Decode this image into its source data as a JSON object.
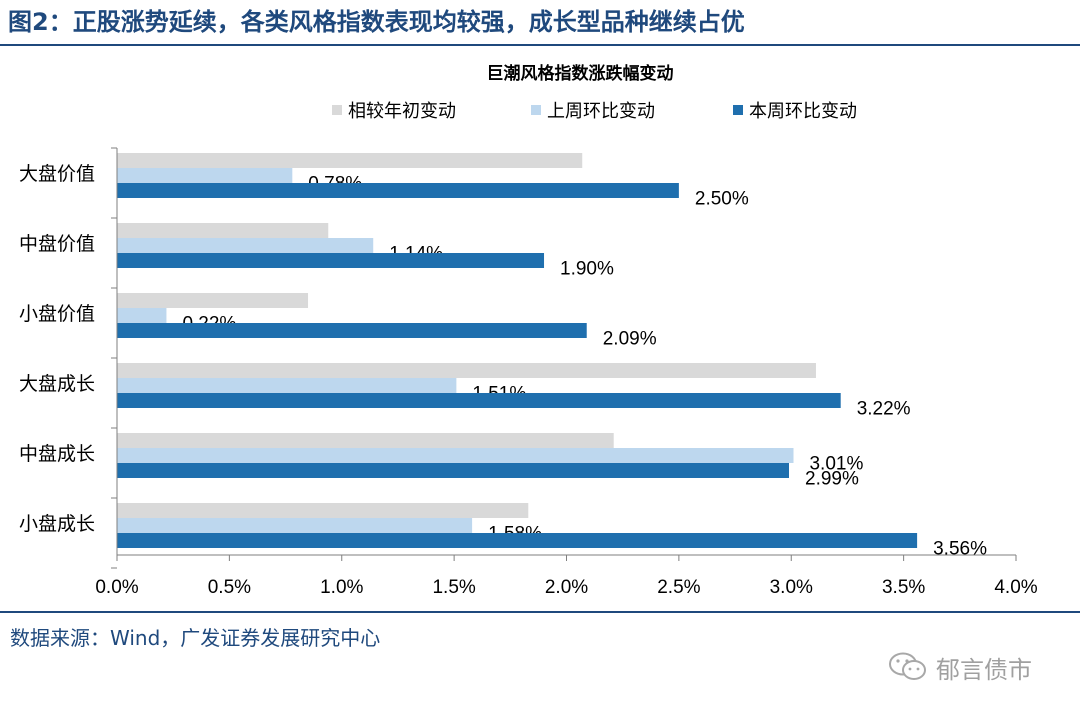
{
  "header": {
    "figure_title": "图2：正股涨势延续，各类风格指数表现均较强，成长型品种继续占优"
  },
  "footer": {
    "source": "数据来源：Wind，广发证券发展研究中心",
    "watermark": "郁言债市"
  },
  "colors": {
    "title_blue": "#1f497d",
    "ytd": "#d9d9d9",
    "last_week": "#bdd7ee",
    "this_week": "#1f6fae"
  },
  "chart_data": {
    "type": "bar",
    "orientation": "horizontal",
    "title": "巨潮风格指数涨跌幅变动",
    "categories": [
      "大盘价值",
      "中盘价值",
      "小盘价值",
      "大盘成长",
      "中盘成长",
      "小盘成长"
    ],
    "series": [
      {
        "name": "相较年初变动",
        "color": "#d9d9d9",
        "values": [
          2.07,
          0.94,
          0.85,
          3.11,
          2.21,
          1.83
        ],
        "labels": null
      },
      {
        "name": "上周环比变动",
        "color": "#bdd7ee",
        "values": [
          0.78,
          1.14,
          0.22,
          1.51,
          3.01,
          1.58
        ],
        "labels": [
          "0.78%",
          "1.14%",
          "0.22%",
          "1.51%",
          "3.01%",
          "1.58%"
        ]
      },
      {
        "name": "本周环比变动",
        "color": "#1f6fae",
        "values": [
          2.5,
          1.9,
          2.09,
          3.22,
          2.99,
          3.56
        ],
        "labels": [
          "2.50%",
          "1.90%",
          "2.09%",
          "3.22%",
          "2.99%",
          "3.56%"
        ]
      }
    ],
    "xlim": [
      0,
      4.0
    ],
    "xticks": [
      0,
      0.5,
      1.0,
      1.5,
      2.0,
      2.5,
      3.0,
      3.5,
      4.0
    ],
    "xtick_labels": [
      "0.0%",
      "0.5%",
      "1.0%",
      "1.5%",
      "2.0%",
      "2.5%",
      "3.0%",
      "3.5%",
      "4.0%"
    ],
    "grid": false,
    "legend_position": "top"
  }
}
